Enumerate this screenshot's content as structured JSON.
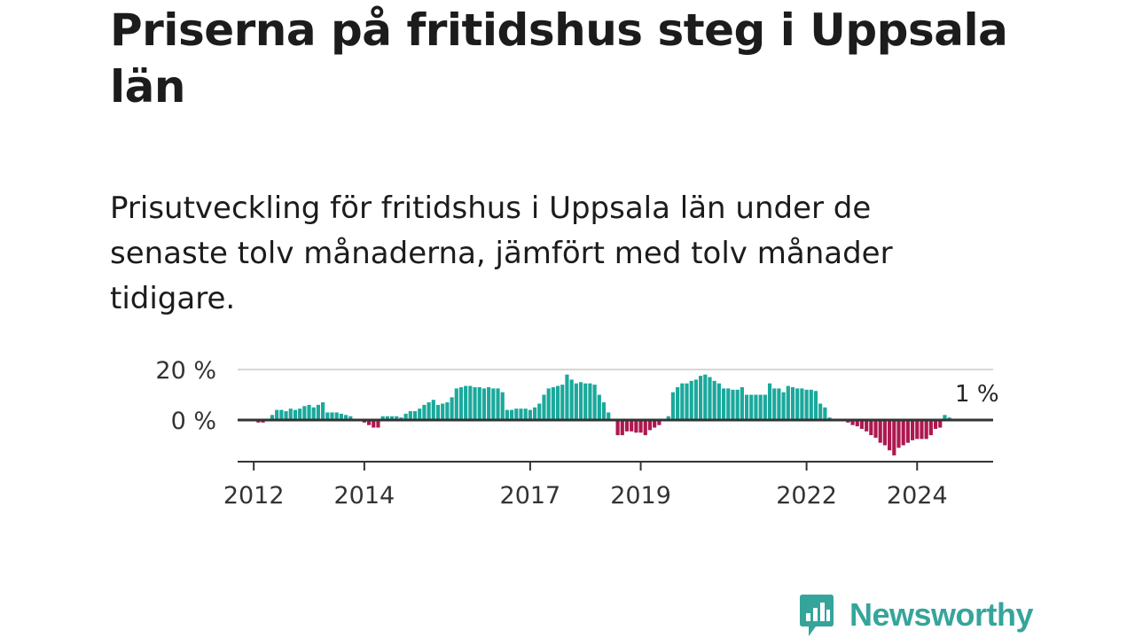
{
  "title": "Priserna på fritidshus steg i Uppsala län",
  "subtitle": "Prisutveckling för fritidshus i Uppsala län under de senaste tolv månaderna, jämfört med tolv månader tidigare.",
  "brand": {
    "name": "Newsworthy",
    "color": "#35a59b"
  },
  "colors": {
    "positive": "#1aa99c",
    "negative": "#ad1850",
    "zero_line": "#333333",
    "grid": "#d6d6d6",
    "axis": "#333333"
  },
  "chart_data": {
    "type": "bar",
    "ylim": [
      -14,
      20
    ],
    "y_ticks": [
      {
        "value": 20,
        "label": "20 %"
      },
      {
        "value": 0,
        "label": "0 %"
      }
    ],
    "x_ticks": [
      {
        "date": "2012-01",
        "label": "2012"
      },
      {
        "date": "2014-01",
        "label": "2014"
      },
      {
        "date": "2017-01",
        "label": "2017"
      },
      {
        "date": "2019-01",
        "label": "2019"
      },
      {
        "date": "2022-01",
        "label": "2022"
      },
      {
        "date": "2024-01",
        "label": "2024"
      }
    ],
    "x_start": "2011-10",
    "x_end": "2025-05",
    "annotation": {
      "date": "2025-02",
      "label": "1 %"
    },
    "series": [
      {
        "start": "2011-10",
        "values": [
          0,
          0,
          0,
          0,
          -1,
          -1,
          -0.5,
          2,
          4,
          4,
          3.5,
          4.5,
          4,
          4.5,
          5.5,
          6,
          5,
          6,
          7,
          3,
          3,
          3,
          2.5,
          2,
          1.5,
          0.5,
          0,
          -1,
          -2,
          -3,
          -3,
          1.5,
          1.5,
          1.5,
          1.5,
          1,
          2.5,
          3.5,
          3.5,
          4.5,
          6,
          7,
          8,
          6,
          6.5,
          7,
          9,
          12.5,
          13,
          13.5,
          13.5,
          13,
          13,
          12.5,
          13,
          12.5,
          12.5,
          11,
          4,
          4,
          4.5,
          4.5,
          4.5,
          4,
          5,
          6.5,
          10,
          12.5,
          13,
          13.5,
          14,
          18,
          16,
          14.5,
          15,
          14.5,
          14.5,
          14,
          10,
          7,
          3,
          0,
          -6,
          -6,
          -4.5,
          -4.5,
          -5,
          -5,
          -6,
          -4,
          -3,
          -2,
          0,
          1.5,
          11,
          13,
          14.5,
          14.5,
          15.5,
          16,
          17.5,
          18,
          17,
          15.5,
          14.5,
          12.5,
          12.5,
          12,
          12,
          13,
          10,
          10,
          10,
          10,
          10,
          14.5,
          12.5,
          12.5,
          11,
          13.5,
          13,
          12.5,
          12.5,
          12,
          12,
          11.5,
          6.5,
          5,
          1,
          0.5,
          0,
          -0.5,
          -1,
          -2,
          -2.5,
          -3.5,
          -4.5,
          -6,
          -7,
          -9,
          -10,
          -12,
          -14,
          -11,
          -10,
          -9,
          -8,
          -7.5,
          -7.5,
          -7.5,
          -6,
          -3.5,
          -3,
          2,
          1
        ]
      }
    ]
  }
}
